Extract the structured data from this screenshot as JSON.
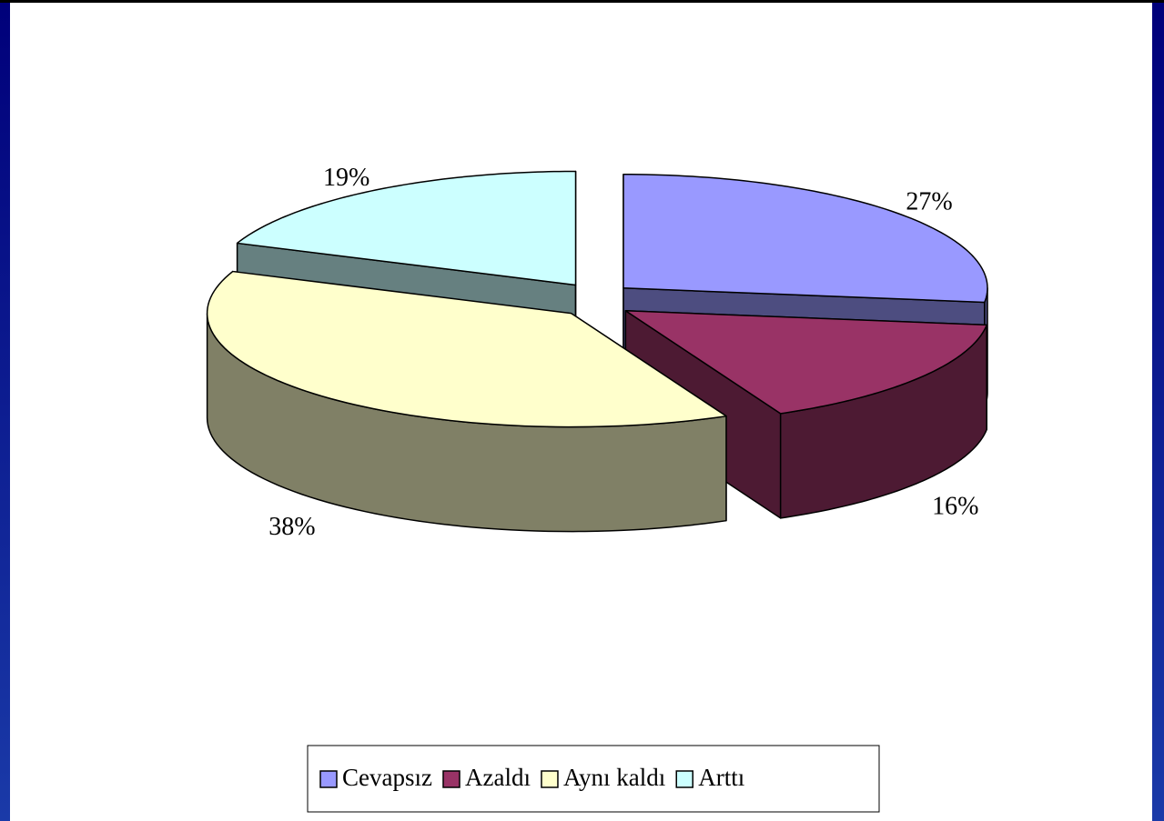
{
  "chart_data": {
    "type": "pie3d",
    "categories": [
      "Cevapsız",
      "Azaldı",
      "Aynı kaldı",
      "Arttı"
    ],
    "values": [
      27,
      16,
      38,
      19
    ],
    "value_labels": [
      "27%",
      "16%",
      "38%",
      "19%"
    ],
    "colors": [
      "#9999ff",
      "#993366",
      "#ffffcc",
      "#ccffff"
    ],
    "legend": "bottom"
  }
}
